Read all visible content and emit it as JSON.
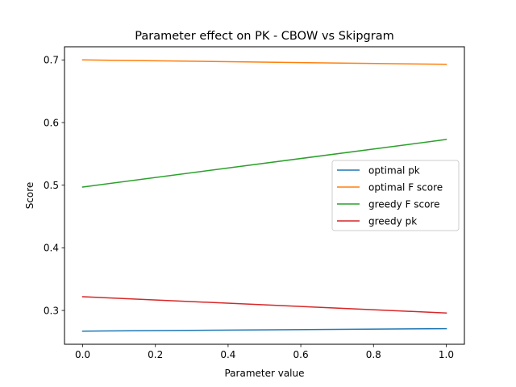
{
  "chart_data": {
    "type": "line",
    "title": "Parameter effect on PK - CBOW vs Skipgram",
    "xlabel": "Parameter value",
    "ylabel": "Score",
    "x": [
      0.0,
      1.0
    ],
    "xlim": [
      -0.05,
      1.05
    ],
    "ylim": [
      0.246,
      0.721
    ],
    "xticks": [
      "0.0",
      "0.2",
      "0.4",
      "0.6",
      "0.8",
      "1.0"
    ],
    "yticks": [
      "0.3",
      "0.4",
      "0.5",
      "0.6",
      "0.7"
    ],
    "grid": false,
    "legend_position": "center-right",
    "series": [
      {
        "name": "optimal pk",
        "color": "#1f77b4",
        "values": [
          0.267,
          0.271
        ]
      },
      {
        "name": "optimal F score",
        "color": "#ff7f0e",
        "values": [
          0.7,
          0.693
        ]
      },
      {
        "name": "greedy F score",
        "color": "#2ca02c",
        "values": [
          0.497,
          0.573
        ]
      },
      {
        "name": "greedy pk",
        "color": "#d62728",
        "values": [
          0.322,
          0.296
        ]
      }
    ]
  }
}
